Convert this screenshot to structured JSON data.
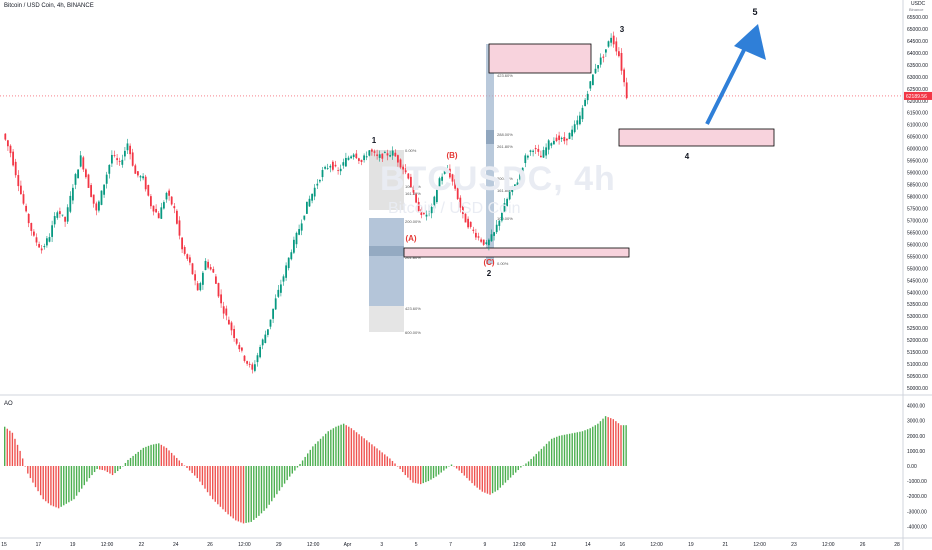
{
  "header": {
    "title": "Bitcoin / USD Coin, 4h, BINANCE",
    "watermark": "BTCUSDC, 4h",
    "watermark_sub": "Bitcoin / USD Coin"
  },
  "price_axis": {
    "currency": "USDC",
    "currency_sub": "Binance",
    "ticks": [
      "65500.00",
      "65000.00",
      "64500.00",
      "64000.00",
      "63500.00",
      "63000.00",
      "62500.00",
      "62000.00",
      "61500.00",
      "61000.00",
      "60500.00",
      "60000.00",
      "59500.00",
      "59000.00",
      "58500.00",
      "58000.00",
      "57500.00",
      "57000.00",
      "56500.00",
      "56000.00",
      "55500.00",
      "55000.00",
      "54500.00",
      "54000.00",
      "53500.00",
      "53000.00",
      "52500.00",
      "52000.00",
      "51500.00",
      "51000.00",
      "50500.00",
      "50000.00"
    ],
    "current_price": "62189.56"
  },
  "ao_axis": {
    "label": "AO",
    "ticks": [
      "4000.00",
      "3000.00",
      "2000.00",
      "1000.00",
      "0.00",
      "-1000.00",
      "-2000.00",
      "-3000.00",
      "-4000.00"
    ]
  },
  "time_axis": {
    "ticks": [
      "15",
      "17",
      "19",
      "12:00",
      "22",
      "24",
      "26",
      "12:00",
      "29",
      "12:00",
      "Apr",
      "3",
      "5",
      "7",
      "9",
      "12:00",
      "12",
      "14",
      "16",
      "12:00",
      "19",
      "21",
      "12:00",
      "23",
      "12:00",
      "26",
      "28"
    ]
  },
  "chart_data": {
    "type": "candlestick",
    "main_ylim": [
      49700,
      65900
    ],
    "ao_ylim": [
      -4500,
      4500
    ],
    "price_path": [
      60600,
      59800,
      58500,
      57200,
      56200,
      55700,
      56300,
      57400,
      56900,
      58400,
      59600,
      58400,
      57300,
      58500,
      59700,
      59300,
      60200,
      58900,
      58700,
      57600,
      57100,
      58100,
      57400,
      55700,
      55100,
      53900,
      55200,
      54700,
      53400,
      52600,
      51800,
      51100,
      50600,
      51600,
      52400,
      53600,
      54600,
      55700,
      56600,
      57600,
      58300,
      59000,
      59300,
      59000,
      59500,
      59800,
      59400,
      59900,
      59600,
      59700,
      59800,
      59300,
      58800,
      57600,
      57100,
      57400,
      58700,
      59100,
      58300,
      57100,
      56600,
      56200,
      55900,
      56400,
      57300,
      58100,
      58600,
      59600,
      60000,
      59600,
      60200,
      60400,
      60300,
      60700,
      61300,
      62400,
      63400,
      63900,
      64700,
      63900,
      62189.56
    ],
    "ao_values": [
      2600,
      2200,
      1000,
      -500,
      -1400,
      -2200,
      -2600,
      -2800,
      -2500,
      -2200,
      -1500,
      -800,
      -200,
      -300,
      -600,
      -200,
      400,
      800,
      1200,
      1400,
      1500,
      1200,
      700,
      200,
      -300,
      -800,
      -1500,
      -2200,
      -2700,
      -3200,
      -3600,
      -3800,
      -3700,
      -3300,
      -2800,
      -2100,
      -1400,
      -700,
      -100,
      600,
      1300,
      1800,
      2300,
      2600,
      2800,
      2500,
      2100,
      1700,
      1300,
      900,
      500,
      0,
      -600,
      -1100,
      -1200,
      -1000,
      -700,
      -300,
      100,
      -300,
      -800,
      -1300,
      -1700,
      -1900,
      -1600,
      -1100,
      -600,
      -100,
      300,
      800,
      1300,
      1800,
      2000,
      2100,
      2200,
      2300,
      2500,
      2800,
      3300,
      3100,
      2700
    ],
    "waves": [
      {
        "label": "1",
        "price": 60300
      },
      {
        "label": "(A)",
        "price": 56400
      },
      {
        "label": "(B)",
        "price": 59700
      },
      {
        "label": "(C)",
        "price": 55400
      },
      {
        "label": "2",
        "price": 55100
      },
      {
        "label": "3",
        "price": 65000
      },
      {
        "label": "4",
        "price": 59600
      },
      {
        "label": "5",
        "price": 65800
      }
    ],
    "fib_left": [
      "0.00%",
      "100.00%",
      "161.80%",
      "200.00%",
      "261.80%",
      "423.60%",
      "600.00%"
    ],
    "fib_right": [
      "600.00%",
      "423.60%",
      "288.00%",
      "261.80%",
      "200.00%",
      "161.80%",
      "100.00%",
      "0.00%"
    ]
  },
  "colors": {
    "up": "#26a69a",
    "down": "#ef5350",
    "up_candle": "#089981",
    "down_candle": "#f23645",
    "ao_up": "#4caf50",
    "ao_down": "#ef5350",
    "zone_fill": "#f8d3dd",
    "fib_blue": "#9bb2cc",
    "fib_gray": "#cfcfcf",
    "arrow": "#2f7fd8",
    "label_red": "#e53935"
  }
}
